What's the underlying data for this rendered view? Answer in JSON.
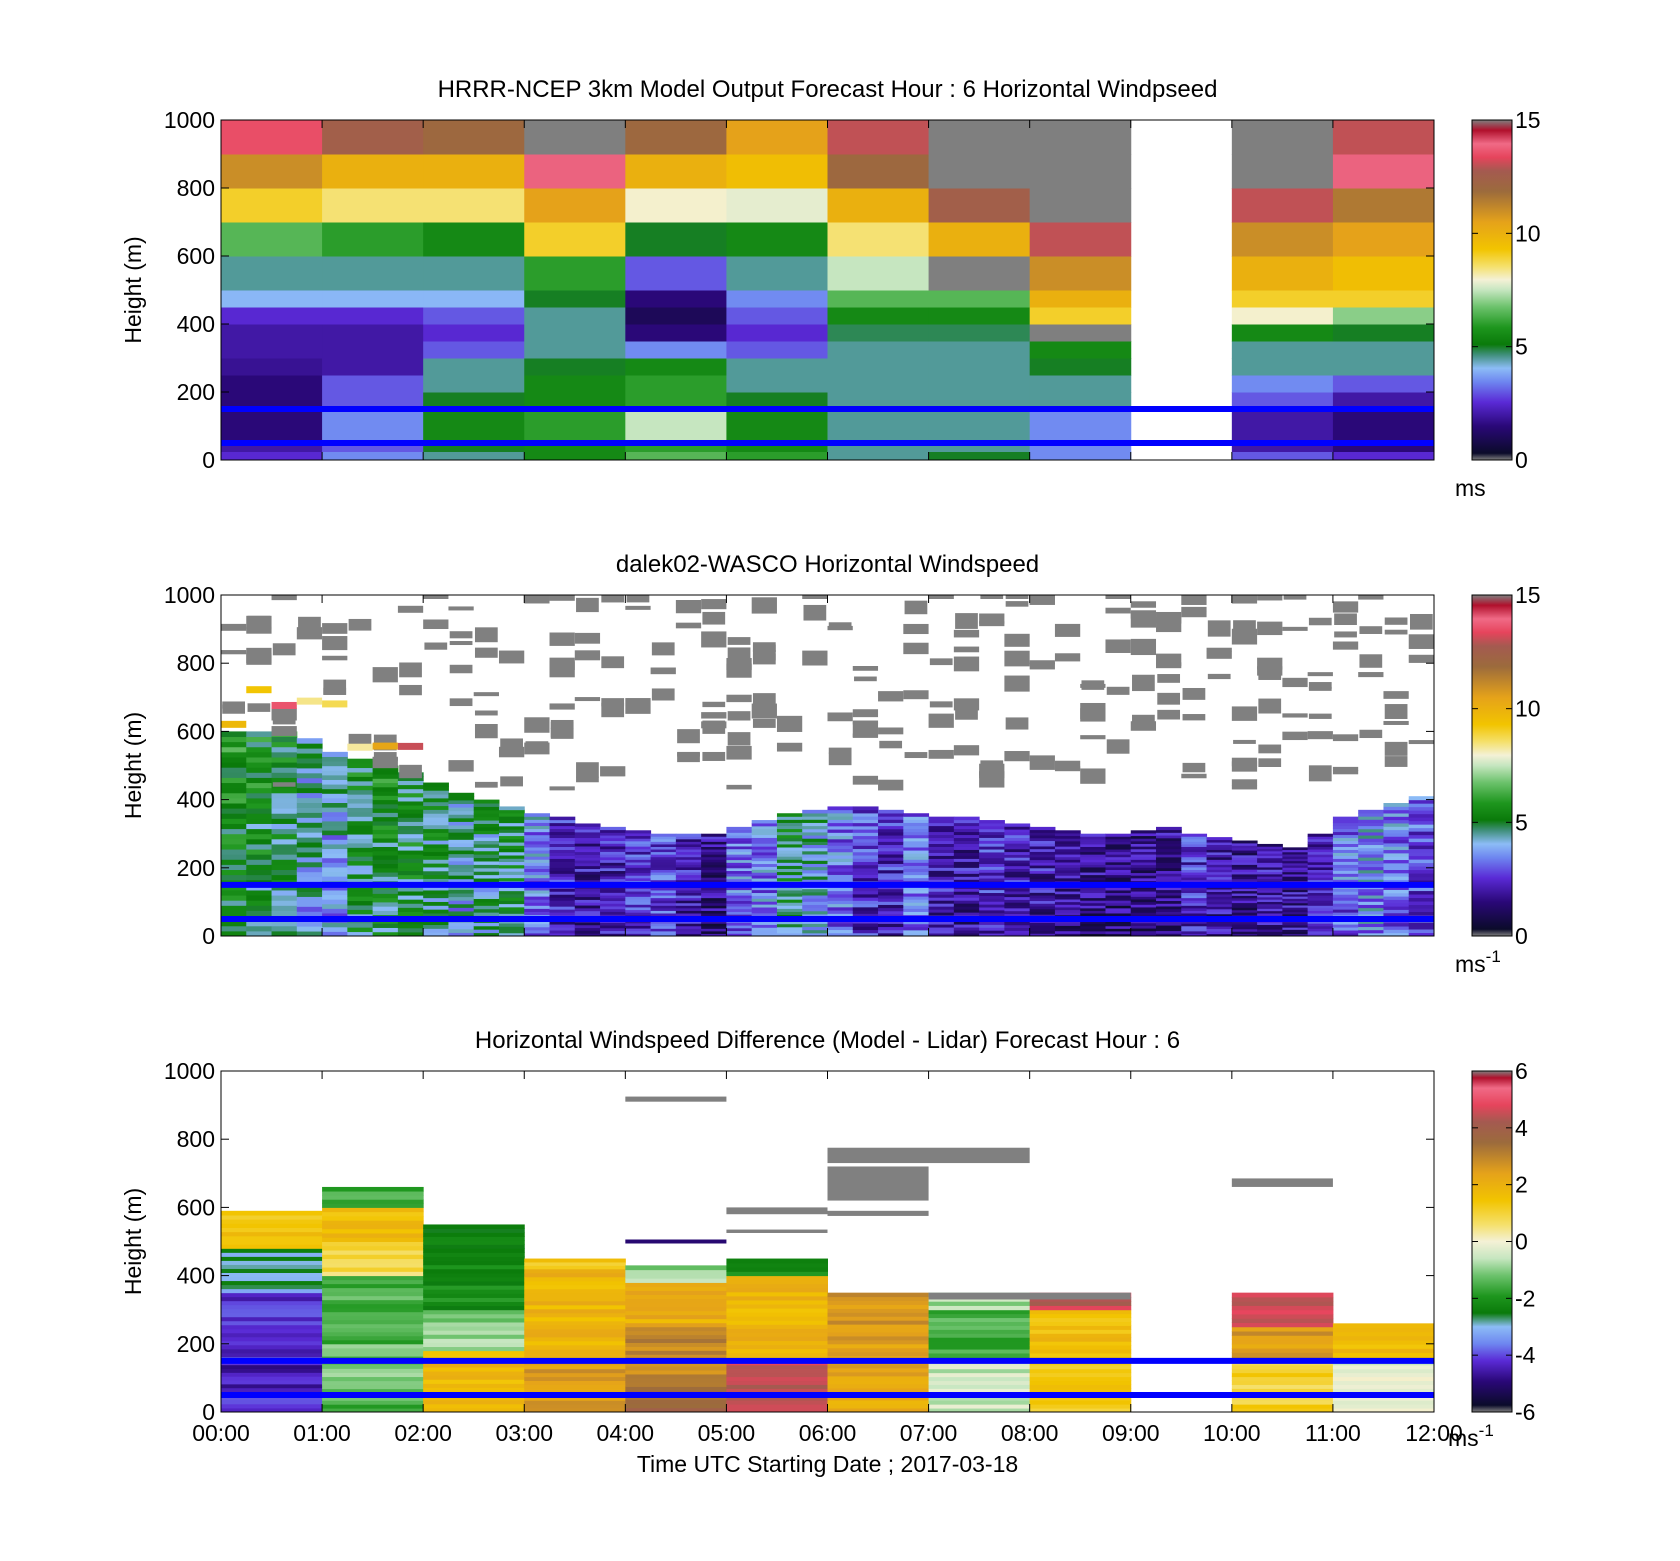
{
  "chart_data": [
    {
      "type": "heatmap",
      "title": "HRRR-NCEP 3km Model Output   Forecast Hour : 6 Horizontal Windpseed",
      "ylabel": "Height (m)",
      "xlabel": "",
      "ylim": [
        0,
        1000
      ],
      "yticks": [
        "0",
        "200",
        "400",
        "600",
        "800",
        "1000"
      ],
      "xlim_hours": [
        0,
        12
      ],
      "colorbar": {
        "range": [
          0,
          15
        ],
        "ticks": [
          "0",
          "5",
          "10",
          "15"
        ],
        "unit": "ms",
        "unit_sup": "",
        "scale": "speed"
      },
      "reference_heights_m": [
        150,
        50
      ],
      "columns_hours": [
        0,
        1,
        2,
        3,
        4,
        5,
        6,
        7,
        8,
        9,
        10,
        11
      ],
      "rows_m": [
        [
          0,
          25
        ],
        [
          25,
          50
        ],
        [
          50,
          150
        ],
        [
          150,
          200
        ],
        [
          200,
          250
        ],
        [
          250,
          300
        ],
        [
          300,
          350
        ],
        [
          350,
          400
        ],
        [
          400,
          450
        ],
        [
          450,
          500
        ],
        [
          500,
          600
        ],
        [
          600,
          700
        ],
        [
          700,
          800
        ],
        [
          800,
          900
        ],
        [
          900,
          1000
        ]
      ],
      "values": [
        [
          2.5,
          3.5,
          4.5,
          5.5,
          6.5,
          6.0,
          4.5,
          5.0,
          3.5,
          null,
          3.0,
          2.5
        ],
        [
          2.0,
          3.0,
          5.0,
          5.5,
          6.0,
          5.5,
          4.5,
          4.5,
          3.5,
          null,
          2.0,
          1.5
        ],
        [
          1.5,
          3.5,
          5.5,
          6.0,
          7.5,
          5.5,
          4.5,
          4.5,
          3.5,
          null,
          2.0,
          1.5
        ],
        [
          1.5,
          3.0,
          5.0,
          5.5,
          6.0,
          5.0,
          4.5,
          4.5,
          4.5,
          null,
          3.0,
          2.0
        ],
        [
          1.5,
          3.0,
          4.5,
          5.5,
          6.0,
          4.5,
          4.5,
          4.5,
          4.5,
          null,
          3.5,
          3.0
        ],
        [
          1.8,
          2.0,
          4.5,
          5.0,
          5.5,
          4.5,
          4.5,
          4.5,
          5.0,
          null,
          4.5,
          4.5
        ],
        [
          2.0,
          2.0,
          3.0,
          4.5,
          3.5,
          3.0,
          4.5,
          4.5,
          5.5,
          null,
          4.5,
          4.5
        ],
        [
          2.0,
          2.0,
          2.5,
          4.5,
          1.5,
          2.5,
          4.8,
          4.8,
          15.0,
          null,
          5.5,
          5.0
        ],
        [
          2.5,
          2.5,
          3.0,
          4.5,
          1.0,
          3.0,
          5.5,
          5.5,
          9.0,
          null,
          8.0,
          7.0
        ],
        [
          4.0,
          4.0,
          4.0,
          5.0,
          1.5,
          3.5,
          6.5,
          6.5,
          10.0,
          null,
          9.0,
          9.0
        ],
        [
          4.5,
          4.5,
          4.5,
          6.0,
          3.0,
          4.5,
          7.5,
          15.0,
          11.0,
          null,
          10.0,
          9.5
        ],
        [
          6.5,
          6.0,
          5.5,
          9.0,
          5.0,
          5.5,
          8.5,
          10.0,
          13.0,
          null,
          11.0,
          10.5
        ],
        [
          9.0,
          8.5,
          8.5,
          10.5,
          8.0,
          7.8,
          10.0,
          12.5,
          15.0,
          null,
          13.0,
          11.5
        ],
        [
          11.0,
          10.0,
          10.0,
          14.0,
          10.0,
          9.5,
          12.0,
          15.0,
          15.0,
          null,
          15.0,
          14.0
        ],
        [
          13.5,
          12.5,
          12.0,
          15.0,
          12.0,
          10.5,
          13.0,
          15.0,
          15.0,
          null,
          15.0,
          13.0
        ]
      ]
    },
    {
      "type": "heatmap",
      "title": "dalek02-WASCO  Horizontal Windspeed",
      "ylabel": "Height (m)",
      "xlabel": "",
      "ylim": [
        0,
        1000
      ],
      "yticks": [
        "0",
        "200",
        "400",
        "600",
        "800",
        "1000"
      ],
      "xlim_hours": [
        0,
        12
      ],
      "colorbar": {
        "range": [
          0,
          15
        ],
        "ticks": [
          "0",
          "5",
          "10",
          "15"
        ],
        "unit": "ms",
        "unit_sup": "-1",
        "scale": "speed"
      },
      "reference_heights_m": [
        150,
        50
      ],
      "column_width_hours": 0.25,
      "profile_tops_m": [
        600,
        600,
        600,
        580,
        540,
        520,
        500,
        480,
        450,
        420,
        400,
        380,
        360,
        350,
        330,
        320,
        310,
        300,
        300,
        300,
        320,
        340,
        360,
        370,
        380,
        380,
        370,
        360,
        350,
        350,
        340,
        330,
        320,
        310,
        300,
        300,
        310,
        320,
        300,
        290,
        280,
        270,
        260,
        300,
        350,
        370,
        390,
        410
      ],
      "mean_speed_ms": [
        5.0,
        4.8,
        4.6,
        3.8,
        3.6,
        4.7,
        4.9,
        4.8,
        4.5,
        3.9,
        4.3,
        4.7,
        3.2,
        2.2,
        1.8,
        2.0,
        2.4,
        2.6,
        2.0,
        1.5,
        3.0,
        3.2,
        4.5,
        4.0,
        3.0,
        2.4,
        2.2,
        3.0,
        2.0,
        1.8,
        2.4,
        2.0,
        1.9,
        1.6,
        1.5,
        1.4,
        1.4,
        1.5,
        2.3,
        1.8,
        1.6,
        1.7,
        1.8,
        2.0,
        3.0,
        3.5,
        3.0,
        2.6
      ],
      "note_upper": "scattered gray (out-of-range) returns between 400 m and 1000 m"
    },
    {
      "type": "heatmap",
      "title": "Horizontal Windspeed Difference (Model - Lidar) Forecast Hour : 6",
      "ylabel": "Height (m)",
      "xlabel": "Time UTC  Starting Date ; 2017-03-18",
      "ylim": [
        0,
        1000
      ],
      "yticks": [
        "0",
        "200",
        "400",
        "600",
        "800",
        "1000"
      ],
      "xticks": [
        "00:00",
        "01:00",
        "02:00",
        "03:00",
        "04:00",
        "05:00",
        "06:00",
        "07:00",
        "08:00",
        "09:00",
        "10:00",
        "11:00",
        "12:00"
      ],
      "xlim_hours": [
        0,
        12
      ],
      "colorbar": {
        "range": [
          -6,
          6
        ],
        "ticks": [
          "-6",
          "-4",
          "-2",
          "0",
          "2",
          "4",
          "6"
        ],
        "unit": "ms",
        "unit_sup": "-1",
        "scale": "diff"
      },
      "reference_heights_m": [
        150,
        50
      ],
      "columns": [
        {
          "hour": 0,
          "top_m": 590,
          "bands": [
            [
              0,
              60,
              -4.0
            ],
            [
              60,
              150,
              -4.5
            ],
            [
              150,
              350,
              -4.2
            ],
            [
              350,
              480,
              -2.8
            ],
            [
              480,
              590,
              1.5
            ]
          ]
        },
        {
          "hour": 1,
          "top_m": 660,
          "bands": [
            [
              0,
              80,
              -1.5
            ],
            [
              80,
              200,
              -1.2
            ],
            [
              200,
              400,
              -1.5
            ],
            [
              400,
              500,
              0.8
            ],
            [
              500,
              600,
              1.6
            ],
            [
              600,
              660,
              -1.5
            ]
          ]
        },
        {
          "hour": 2,
          "top_m": 550,
          "bands": [
            [
              0,
              180,
              1.8
            ],
            [
              180,
              300,
              -1.0
            ],
            [
              300,
              480,
              -2.2
            ],
            [
              480,
              550,
              -2.6
            ]
          ]
        },
        {
          "hour": 3,
          "top_m": 450,
          "bands": [
            [
              0,
              150,
              2.5
            ],
            [
              150,
              420,
              1.8
            ],
            [
              420,
              450,
              1.4
            ]
          ]
        },
        {
          "hour": 4,
          "top_m": 430,
          "bands": [
            [
              0,
              100,
              3.5
            ],
            [
              100,
              250,
              3.0
            ],
            [
              250,
              380,
              2.0
            ],
            [
              380,
              430,
              -1.0
            ]
          ]
        },
        {
          "hour": 5,
          "top_m": 450,
          "bands": [
            [
              0,
              150,
              4.5
            ],
            [
              150,
              400,
              1.8
            ],
            [
              400,
              450,
              -2.0
            ]
          ]
        },
        {
          "hour": 6,
          "top_m": 350,
          "bands": [
            [
              0,
              200,
              2.2
            ],
            [
              200,
              350,
              2.6
            ]
          ]
        },
        {
          "hour": 7,
          "top_m": 350,
          "bands": [
            [
              0,
              150,
              -0.5
            ],
            [
              150,
              300,
              -1.5
            ],
            [
              300,
              350,
              -0.8
            ]
          ]
        },
        {
          "hour": 8,
          "top_m": 350,
          "bands": [
            [
              0,
              150,
              1.2
            ],
            [
              150,
              300,
              1.6
            ],
            [
              300,
              350,
              4.5
            ]
          ]
        },
        {
          "hour": 10,
          "top_m": 350,
          "bands": [
            [
              0,
              150,
              1.0
            ],
            [
              150,
              250,
              2.5
            ],
            [
              250,
              350,
              4.5
            ]
          ]
        },
        {
          "hour": 11,
          "top_m": 260,
          "bands": [
            [
              0,
              150,
              -0.3
            ],
            [
              150,
              260,
              1.8
            ]
          ]
        }
      ],
      "gray_patches": [
        {
          "hour0": 4,
          "hour1": 5,
          "bottom_m": 910,
          "top_m": 925
        },
        {
          "hour0": 5,
          "hour1": 6,
          "bottom_m": 580,
          "top_m": 600
        },
        {
          "hour0": 5,
          "hour1": 6,
          "bottom_m": 525,
          "top_m": 535
        },
        {
          "hour0": 6,
          "hour1": 8,
          "bottom_m": 730,
          "top_m": 775
        },
        {
          "hour0": 6,
          "hour1": 7,
          "bottom_m": 620,
          "top_m": 720
        },
        {
          "hour0": 6,
          "hour1": 7,
          "bottom_m": 575,
          "top_m": 590
        },
        {
          "hour0": 10,
          "hour1": 11,
          "bottom_m": 660,
          "top_m": 685
        },
        {
          "hour0": 7,
          "hour1": 9,
          "bottom_m": 330,
          "top_m": 350
        }
      ],
      "thin_lines": [
        {
          "hour0": 4,
          "hour1": 5,
          "height_m": 500,
          "value": -5.0
        }
      ]
    }
  ]
}
